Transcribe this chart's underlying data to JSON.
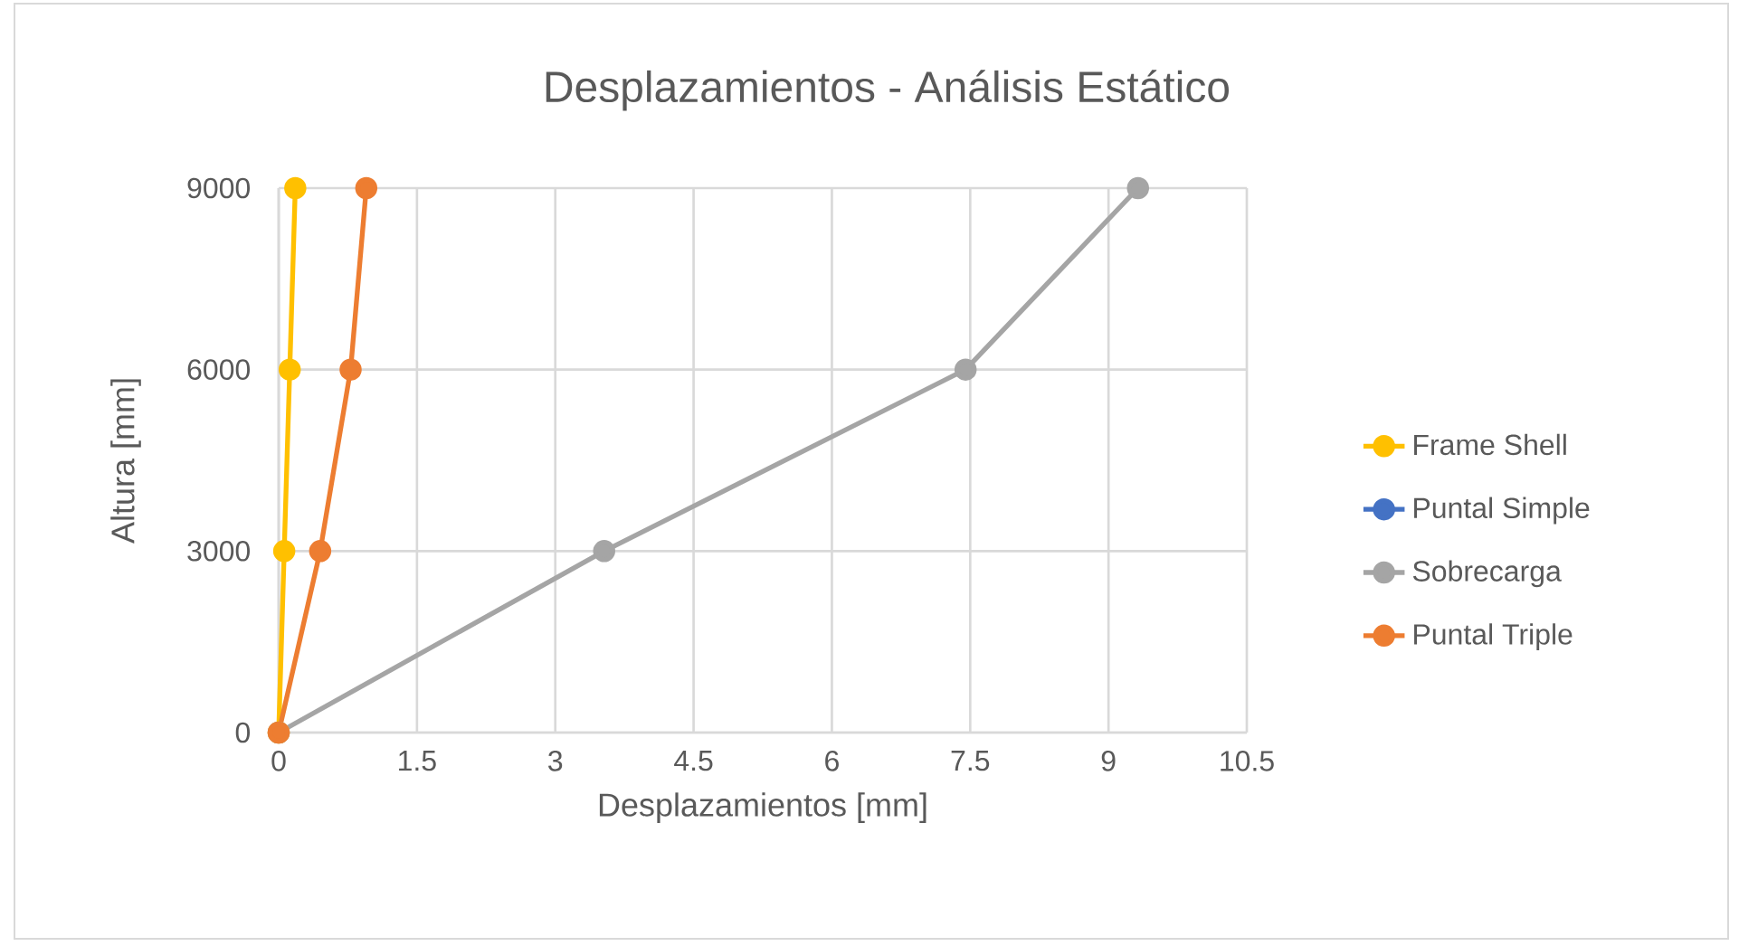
{
  "chart_data": {
    "type": "line",
    "title": "Desplazamientos - Análisis Estático",
    "xlabel": "Desplazamientos [mm]",
    "ylabel": "Altura [mm]",
    "series": [
      {
        "name": "Frame Shell",
        "color": "#ffc000",
        "x": [
          0,
          0.06,
          0.12,
          0.18
        ],
        "values": [
          0,
          3000,
          6000,
          9000
        ]
      },
      {
        "name": "Puntal Simple",
        "color": "#4472c4",
        "values": [
          null,
          null,
          null,
          null
        ]
      },
      {
        "name": "Sobrecarga",
        "color": "#a5a5a5",
        "x": [
          0,
          3.53,
          7.45,
          9.32
        ],
        "values": [
          0,
          3000,
          6000,
          9000
        ]
      },
      {
        "name": "Puntal Triple",
        "color": "#ed7d31",
        "x": [
          0,
          0.45,
          0.78,
          0.95
        ],
        "values": [
          0,
          3000,
          6000,
          9000
        ]
      }
    ],
    "xlim": [
      0,
      10.5
    ],
    "xticks": [
      0,
      1.5,
      3,
      4.5,
      6,
      7.5,
      9,
      10.5
    ],
    "ylim": [
      0,
      9000
    ],
    "yticks": [
      0,
      3000,
      6000,
      9000
    ],
    "grid": true,
    "legend": "right",
    "marker": "circle",
    "line_style": "solid"
  }
}
